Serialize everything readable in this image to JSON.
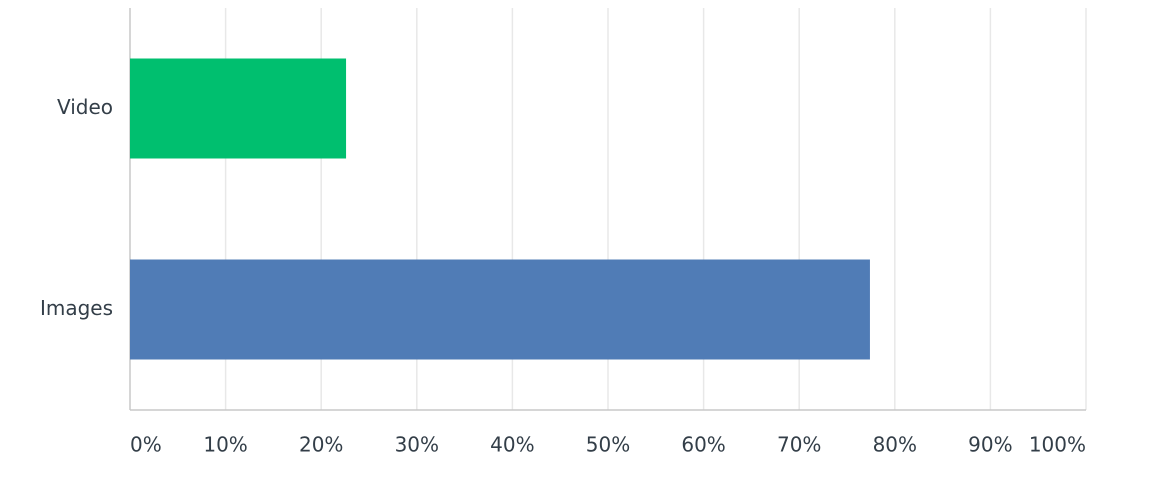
{
  "chart_data": {
    "type": "hbar",
    "categories": [
      "Video",
      "Images"
    ],
    "values": [
      22.6,
      77.4
    ],
    "colors": [
      "#00bf6f",
      "#507cb6"
    ],
    "xlim": [
      0,
      100
    ],
    "xticks": [
      {
        "value": 0,
        "label": "0%"
      },
      {
        "value": 10,
        "label": "10%"
      },
      {
        "value": 20,
        "label": "20%"
      },
      {
        "value": 30,
        "label": "30%"
      },
      {
        "value": 40,
        "label": "40%"
      },
      {
        "value": 50,
        "label": "50%"
      },
      {
        "value": 60,
        "label": "60%"
      },
      {
        "value": 70,
        "label": "70%"
      },
      {
        "value": 80,
        "label": "80%"
      },
      {
        "value": 90,
        "label": "90%"
      },
      {
        "value": 100,
        "label": "100%"
      }
    ],
    "grid": true
  }
}
